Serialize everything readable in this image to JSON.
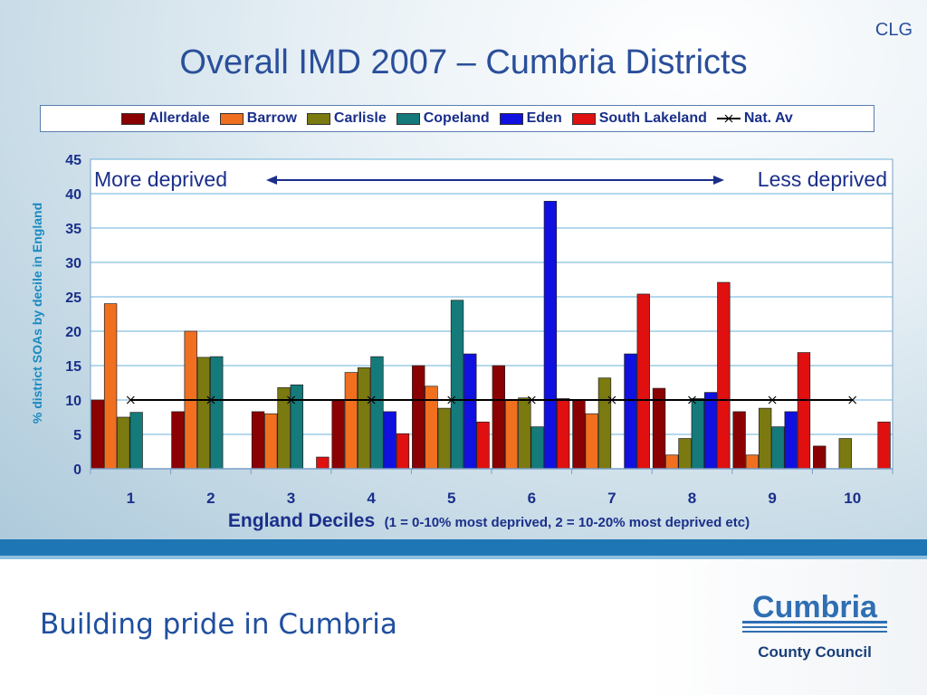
{
  "slide": {
    "corner_tag": "CLG",
    "title": "Overall IMD 2007 – Cumbria Districts",
    "footer_tagline": "Building pride in Cumbria",
    "logo": {
      "name": "Cumbria",
      "subtitle": "County Council"
    }
  },
  "chart_data": {
    "type": "bar",
    "title": "Overall IMD 2007 – Cumbria Districts",
    "categories": [
      "1",
      "2",
      "3",
      "4",
      "5",
      "6",
      "7",
      "8",
      "9",
      "10"
    ],
    "series": [
      {
        "name": "Allerdale",
        "color": "#8b0000",
        "values": [
          10,
          8.3,
          8.3,
          10,
          15,
          15,
          10,
          11.7,
          8.3,
          3.3
        ]
      },
      {
        "name": "Barrow",
        "color": "#f07020",
        "values": [
          24,
          20,
          8,
          14,
          12,
          10,
          8,
          2,
          2,
          0
        ]
      },
      {
        "name": "Carlisle",
        "color": "#7a7a10",
        "values": [
          7.5,
          16.2,
          11.8,
          14.7,
          8.8,
          10.3,
          13.2,
          4.4,
          8.8,
          4.4
        ]
      },
      {
        "name": "Copeland",
        "color": "#157a7a",
        "values": [
          8.2,
          16.3,
          12.2,
          16.3,
          24.5,
          6.1,
          0,
          10.2,
          6.1,
          0
        ]
      },
      {
        "name": "Eden",
        "color": "#1010e0",
        "values": [
          0,
          0,
          0,
          8.3,
          16.7,
          38.9,
          16.7,
          11.1,
          8.3,
          0
        ]
      },
      {
        "name": "South Lakeland",
        "color": "#e01010",
        "values": [
          0,
          0,
          1.7,
          5.1,
          6.8,
          10.2,
          25.4,
          27.1,
          16.9,
          6.8
        ]
      }
    ],
    "reference_line": {
      "name": "Nat. Av",
      "values": [
        10,
        10,
        10,
        10,
        10,
        10,
        10,
        10,
        10,
        10
      ]
    },
    "xlabel": "England Deciles",
    "xlabel_note": "(1 = 0-10% most deprived, 2 = 10-20% most deprived etc)",
    "ylabel": "% district SOAs by decile in England",
    "ylim": [
      0,
      45
    ],
    "yticks": [
      0,
      5,
      10,
      15,
      20,
      25,
      30,
      35,
      40,
      45
    ],
    "grid": true,
    "legend_position": "top",
    "annotations": {
      "left": "More deprived",
      "right": "Less deprived"
    }
  }
}
